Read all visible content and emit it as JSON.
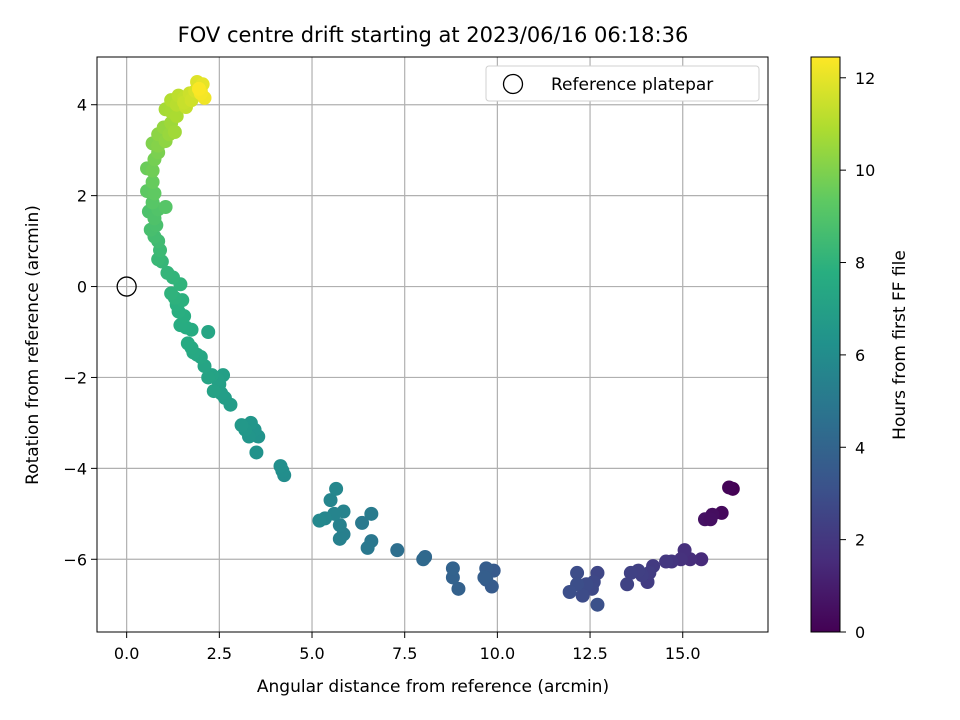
{
  "chart_data": {
    "type": "scatter",
    "title": "FOV centre drift starting at 2023/06/16 06:18:36",
    "xlabel": "Angular distance from reference (arcmin)",
    "ylabel": "Rotation from reference (arcmin)",
    "colorbar_label": "Hours from first FF file",
    "colormap": "viridis",
    "xlim": [
      -0.8,
      17.3
    ],
    "ylim": [
      -7.6,
      5.05
    ],
    "clim": [
      0,
      12.45
    ],
    "xticks": [
      0.0,
      2.5,
      5.0,
      7.5,
      10.0,
      12.5,
      15.0
    ],
    "xtick_labels": [
      "0.0",
      "2.5",
      "5.0",
      "7.5",
      "10.0",
      "12.5",
      "15.0"
    ],
    "yticks": [
      -6,
      -4,
      -2,
      0,
      2,
      4
    ],
    "ytick_labels": [
      "−6",
      "−4",
      "−2",
      "0",
      "2",
      "4"
    ],
    "cticks": [
      0,
      2,
      4,
      6,
      8,
      10,
      12
    ],
    "ctick_labels": [
      "0",
      "2",
      "4",
      "6",
      "8",
      "10",
      "12"
    ],
    "grid": true,
    "legend": {
      "position": "upper-right",
      "label": "Reference platepar"
    },
    "reference_point": {
      "x": 0,
      "y": 0
    },
    "points": [
      [
        16.35,
        -4.45,
        0.0
      ],
      [
        16.25,
        -4.42,
        0.1
      ],
      [
        16.05,
        -4.98,
        0.3
      ],
      [
        15.8,
        -5.02,
        0.45
      ],
      [
        15.6,
        -5.12,
        0.6
      ],
      [
        15.75,
        -5.12,
        0.5
      ],
      [
        15.5,
        -6.0,
        1.5
      ],
      [
        15.2,
        -6.0,
        1.6
      ],
      [
        15.05,
        -5.8,
        1.7
      ],
      [
        14.95,
        -6.0,
        1.75
      ],
      [
        14.7,
        -6.05,
        1.9
      ],
      [
        14.55,
        -6.05,
        2.0
      ],
      [
        14.2,
        -6.15,
        2.1
      ],
      [
        14.05,
        -6.5,
        2.2
      ],
      [
        14.1,
        -6.3,
        2.25
      ],
      [
        13.9,
        -6.35,
        2.3
      ],
      [
        13.8,
        -6.25,
        2.35
      ],
      [
        13.6,
        -6.3,
        2.4
      ],
      [
        13.5,
        -6.55,
        2.45
      ],
      [
        12.7,
        -6.3,
        2.6
      ],
      [
        12.6,
        -6.5,
        2.7
      ],
      [
        12.55,
        -6.65,
        2.75
      ],
      [
        12.4,
        -6.55,
        2.8
      ],
      [
        12.3,
        -6.8,
        2.85
      ],
      [
        12.15,
        -6.3,
        2.9
      ],
      [
        12.15,
        -6.55,
        2.95
      ],
      [
        11.95,
        -6.72,
        3.0
      ],
      [
        12.7,
        -7.0,
        3.05
      ],
      [
        9.9,
        -6.25,
        3.5
      ],
      [
        9.85,
        -6.6,
        3.55
      ],
      [
        9.7,
        -6.45,
        3.6
      ],
      [
        9.7,
        -6.2,
        3.65
      ],
      [
        9.65,
        -6.4,
        3.7
      ],
      [
        8.95,
        -6.65,
        3.85
      ],
      [
        8.8,
        -6.4,
        3.9
      ],
      [
        8.8,
        -6.2,
        3.95
      ],
      [
        8.05,
        -5.95,
        4.2
      ],
      [
        8.0,
        -6.0,
        4.25
      ],
      [
        7.3,
        -5.8,
        4.5
      ],
      [
        6.6,
        -5.6,
        4.9
      ],
      [
        6.5,
        -5.75,
        4.95
      ],
      [
        6.35,
        -5.2,
        5.0
      ],
      [
        6.6,
        -5.0,
        5.1
      ],
      [
        5.85,
        -5.45,
        5.3
      ],
      [
        5.75,
        -5.55,
        5.35
      ],
      [
        5.75,
        -5.25,
        5.4
      ],
      [
        5.85,
        -4.95,
        5.5
      ],
      [
        5.6,
        -5.0,
        5.55
      ],
      [
        5.5,
        -4.7,
        5.6
      ],
      [
        5.35,
        -5.1,
        5.65
      ],
      [
        5.65,
        -4.45,
        5.7
      ],
      [
        5.2,
        -5.15,
        5.75
      ],
      [
        4.25,
        -4.15,
        6.0
      ],
      [
        4.2,
        -4.05,
        6.05
      ],
      [
        4.15,
        -3.95,
        6.1
      ],
      [
        3.5,
        -3.65,
        6.3
      ],
      [
        3.55,
        -3.3,
        6.35
      ],
      [
        3.45,
        -3.15,
        6.4
      ],
      [
        3.3,
        -3.3,
        6.45
      ],
      [
        3.35,
        -3.0,
        6.5
      ],
      [
        3.2,
        -3.15,
        6.55
      ],
      [
        3.1,
        -3.05,
        6.6
      ],
      [
        2.8,
        -2.6,
        6.8
      ],
      [
        2.65,
        -2.45,
        6.85
      ],
      [
        2.55,
        -2.35,
        6.9
      ],
      [
        2.5,
        -2.15,
        6.95
      ],
      [
        2.6,
        -1.95,
        7.0
      ],
      [
        2.45,
        -2.05,
        7.05
      ],
      [
        2.35,
        -2.3,
        7.1
      ],
      [
        2.3,
        -1.95,
        7.15
      ],
      [
        2.2,
        -2.0,
        7.2
      ],
      [
        2.1,
        -1.75,
        7.25
      ],
      [
        2.2,
        -1.0,
        7.3
      ],
      [
        2.0,
        -1.55,
        7.35
      ],
      [
        1.9,
        -1.5,
        7.4
      ],
      [
        1.8,
        -1.45,
        7.45
      ],
      [
        1.75,
        -1.35,
        7.5
      ],
      [
        1.65,
        -1.25,
        7.55
      ],
      [
        1.75,
        -0.95,
        7.6
      ],
      [
        1.6,
        -0.9,
        7.65
      ],
      [
        1.45,
        -0.85,
        7.7
      ],
      [
        1.55,
        -0.65,
        7.75
      ],
      [
        1.4,
        -0.55,
        7.8
      ],
      [
        1.35,
        -0.4,
        7.85
      ],
      [
        1.5,
        -0.3,
        7.9
      ],
      [
        1.3,
        -0.25,
        7.95
      ],
      [
        1.2,
        -0.15,
        8.0
      ],
      [
        1.45,
        0.05,
        8.05
      ],
      [
        1.25,
        0.2,
        8.1
      ],
      [
        1.1,
        0.3,
        8.15
      ],
      [
        0.95,
        0.55,
        8.2
      ],
      [
        0.85,
        0.6,
        8.3
      ],
      [
        0.9,
        0.8,
        8.4
      ],
      [
        0.85,
        1.0,
        8.5
      ],
      [
        0.75,
        1.1,
        8.6
      ],
      [
        0.65,
        1.25,
        8.7
      ],
      [
        0.8,
        1.35,
        8.75
      ],
      [
        0.6,
        1.65,
        8.85
      ],
      [
        0.75,
        1.5,
        8.9
      ],
      [
        0.85,
        1.7,
        9.0
      ],
      [
        1.05,
        1.75,
        9.1
      ],
      [
        0.7,
        1.85,
        9.15
      ],
      [
        0.55,
        2.1,
        9.3
      ],
      [
        0.75,
        2.05,
        9.35
      ],
      [
        0.7,
        2.3,
        9.5
      ],
      [
        0.55,
        2.6,
        9.6
      ],
      [
        0.7,
        2.55,
        9.7
      ],
      [
        0.75,
        2.8,
        9.8
      ],
      [
        0.85,
        2.95,
        9.9
      ],
      [
        0.7,
        3.15,
        10.0
      ],
      [
        0.85,
        3.1,
        10.1
      ],
      [
        0.85,
        3.35,
        10.25
      ],
      [
        1.05,
        3.2,
        10.3
      ],
      [
        1.0,
        3.5,
        10.4
      ],
      [
        1.15,
        3.35,
        10.5
      ],
      [
        1.2,
        3.6,
        10.6
      ],
      [
        1.3,
        3.4,
        10.65
      ],
      [
        1.05,
        3.9,
        10.75
      ],
      [
        1.2,
        3.85,
        10.8
      ],
      [
        1.35,
        3.75,
        10.85
      ],
      [
        1.2,
        4.1,
        11.0
      ],
      [
        1.35,
        4.0,
        11.1
      ],
      [
        1.4,
        4.2,
        11.2
      ],
      [
        1.55,
        4.15,
        11.3
      ],
      [
        1.6,
        3.95,
        11.35
      ],
      [
        1.55,
        4.05,
        11.4
      ],
      [
        1.7,
        4.25,
        11.5
      ],
      [
        1.75,
        4.1,
        11.55
      ],
      [
        1.85,
        4.3,
        11.7
      ],
      [
        1.9,
        4.5,
        11.85
      ],
      [
        2.05,
        4.45,
        12.0
      ],
      [
        2.0,
        4.3,
        12.05
      ],
      [
        2.1,
        4.15,
        12.2
      ],
      [
        2.0,
        4.25,
        12.3
      ],
      [
        1.95,
        4.35,
        12.4
      ]
    ]
  }
}
